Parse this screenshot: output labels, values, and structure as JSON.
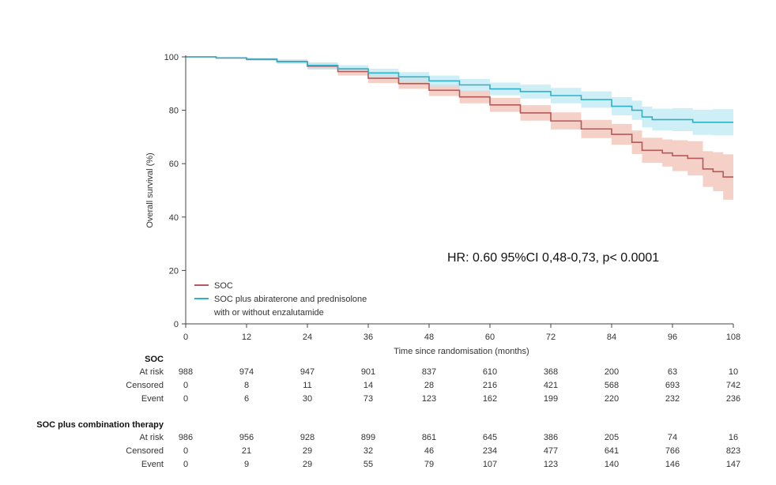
{
  "chart_data": {
    "type": "line",
    "title": "",
    "xlabel": "Time since randomisation (months)",
    "ylabel": "Overall survival (%)",
    "xlim": [
      0,
      108
    ],
    "ylim": [
      0,
      100
    ],
    "xticks": [
      0,
      12,
      24,
      36,
      48,
      60,
      72,
      84,
      96,
      108
    ],
    "yticks": [
      0,
      20,
      40,
      60,
      80,
      100
    ],
    "grid": false,
    "legend_position": "bottom-left",
    "annotation": "HR: 0.60  95%CI 0,48-0,73, p< 0.0001",
    "colors": {
      "soc": "#b55a5a",
      "soc_band": "#f0c0b4",
      "combo": "#2fb0c8",
      "combo_band": "#bfe9f3"
    },
    "series": [
      {
        "name": "SOC",
        "x": [
          0,
          6,
          12,
          18,
          24,
          30,
          36,
          42,
          48,
          54,
          60,
          66,
          72,
          78,
          84,
          88,
          90,
          94,
          96,
          99,
          102,
          104,
          106,
          108
        ],
        "y": [
          100,
          99.6,
          99.1,
          98.2,
          96.5,
          94.5,
          92,
          90,
          87.5,
          85,
          82,
          79,
          76,
          73,
          71,
          68,
          65,
          64,
          63,
          62,
          58,
          57,
          55,
          55
        ],
        "ci_lower": [
          100,
          99.3,
          98.6,
          97.4,
          95.3,
          93,
          90.2,
          88,
          85.3,
          82.6,
          79.4,
          76.1,
          72.8,
          69.6,
          67.1,
          63.6,
          60.3,
          58.9,
          57.2,
          55.6,
          51.3,
          49.7,
          46.5,
          46.5
        ],
        "ci_upper": [
          100,
          99.9,
          99.6,
          99,
          97.7,
          96,
          93.8,
          92,
          89.7,
          87.4,
          84.6,
          81.9,
          79.2,
          76.4,
          74.9,
          72.4,
          69.7,
          69.1,
          68.8,
          68.4,
          64.7,
          64.3,
          63.5,
          63.5
        ]
      },
      {
        "name": "SOC plus abiraterone and prednisolone\nwith or without enzalutamide",
        "legend_lines": [
          "SOC plus abiraterone and prednisolone",
          "with or without enzalutamide"
        ],
        "x": [
          0,
          6,
          12,
          18,
          24,
          30,
          36,
          42,
          48,
          54,
          60,
          66,
          72,
          78,
          84,
          88,
          90,
          92,
          96,
          100,
          104,
          108
        ],
        "y": [
          100,
          99.6,
          99.1,
          98.2,
          96.8,
          95.5,
          94,
          92.5,
          91,
          89.5,
          88,
          87,
          85.5,
          84,
          81.5,
          80,
          77.5,
          76.5,
          76.5,
          75.5,
          75.5,
          75.5
        ],
        "ci_lower": [
          100,
          99.3,
          98.6,
          97.4,
          95.6,
          94.1,
          92.4,
          90.7,
          89,
          87.3,
          85.6,
          84.4,
          82.6,
          80.9,
          78.1,
          76.4,
          73.6,
          72.4,
          72.2,
          70.8,
          70.6,
          70.5
        ],
        "ci_upper": [
          100,
          99.9,
          99.6,
          99,
          98,
          96.9,
          95.6,
          94.3,
          93,
          91.7,
          90.4,
          89.6,
          88.4,
          87.1,
          84.9,
          83.6,
          81.4,
          80.6,
          80.8,
          80.2,
          80.4,
          80.5
        ]
      }
    ]
  },
  "risk_table": {
    "groups": [
      {
        "title": "SOC",
        "rows": [
          {
            "label": "At risk",
            "values": [
              "988",
              "974",
              "947",
              "901",
              "837",
              "610",
              "368",
              "200",
              "63",
              "10"
            ]
          },
          {
            "label": "Censored",
            "values": [
              "0",
              "8",
              "11",
              "14",
              "28",
              "216",
              "421",
              "568",
              "693",
              "742"
            ]
          },
          {
            "label": "Event",
            "values": [
              "0",
              "6",
              "30",
              "73",
              "123",
              "162",
              "199",
              "220",
              "232",
              "236"
            ]
          }
        ]
      },
      {
        "title": "SOC plus combination therapy",
        "rows": [
          {
            "label": "At risk",
            "values": [
              "986",
              "956",
              "928",
              "899",
              "861",
              "645",
              "386",
              "205",
              "74",
              "16"
            ]
          },
          {
            "label": "Censored",
            "values": [
              "0",
              "21",
              "29",
              "32",
              "46",
              "234",
              "477",
              "641",
              "766",
              "823"
            ]
          },
          {
            "label": "Event",
            "values": [
              "0",
              "9",
              "29",
              "55",
              "79",
              "107",
              "123",
              "140",
              "146",
              "147"
            ]
          }
        ]
      }
    ]
  }
}
